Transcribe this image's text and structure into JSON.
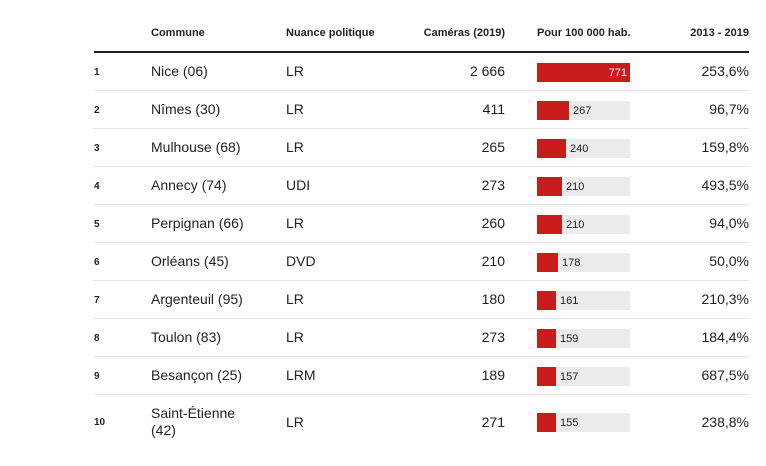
{
  "headers": {
    "rank": "",
    "commune": "Commune",
    "nuance": "Nuance politique",
    "cameras": "Caméras (2019)",
    "rate": "Pour 100 000 hab.",
    "evolution": "2013 - 2019"
  },
  "rate_max": 771,
  "bar_color": "#c81c1c",
  "bar_bg_color": "#ebebeb",
  "rows": [
    {
      "rank": "1",
      "commune": "Nice (06)",
      "nuance": "LR",
      "cameras": "2 666",
      "rate": 771,
      "rate_label": "771",
      "evolution": "253,6%"
    },
    {
      "rank": "2",
      "commune": "Nîmes (30)",
      "nuance": "LR",
      "cameras": "411",
      "rate": 267,
      "rate_label": "267",
      "evolution": "96,7%"
    },
    {
      "rank": "3",
      "commune": "Mulhouse (68)",
      "nuance": "LR",
      "cameras": "265",
      "rate": 240,
      "rate_label": "240",
      "evolution": "159,8%"
    },
    {
      "rank": "4",
      "commune": "Annecy (74)",
      "nuance": "UDI",
      "cameras": "273",
      "rate": 210,
      "rate_label": "210",
      "evolution": "493,5%"
    },
    {
      "rank": "5",
      "commune": "Perpignan (66)",
      "nuance": "LR",
      "cameras": "260",
      "rate": 210,
      "rate_label": "210",
      "evolution": "94,0%"
    },
    {
      "rank": "6",
      "commune": "Orléans (45)",
      "nuance": "DVD",
      "cameras": "210",
      "rate": 178,
      "rate_label": "178",
      "evolution": "50,0%"
    },
    {
      "rank": "7",
      "commune": "Argenteuil (95)",
      "nuance": "LR",
      "cameras": "180",
      "rate": 161,
      "rate_label": "161",
      "evolution": "210,3%"
    },
    {
      "rank": "8",
      "commune": "Toulon (83)",
      "nuance": "LR",
      "cameras": "273",
      "rate": 159,
      "rate_label": "159",
      "evolution": "184,4%"
    },
    {
      "rank": "9",
      "commune": "Besançon (25)",
      "nuance": "LRM",
      "cameras": "189",
      "rate": 157,
      "rate_label": "157",
      "evolution": "687,5%"
    },
    {
      "rank": "10",
      "commune": "Saint-Étienne (42)",
      "nuance": "LR",
      "cameras": "271",
      "rate": 155,
      "rate_label": "155",
      "evolution": "238,8%"
    }
  ]
}
